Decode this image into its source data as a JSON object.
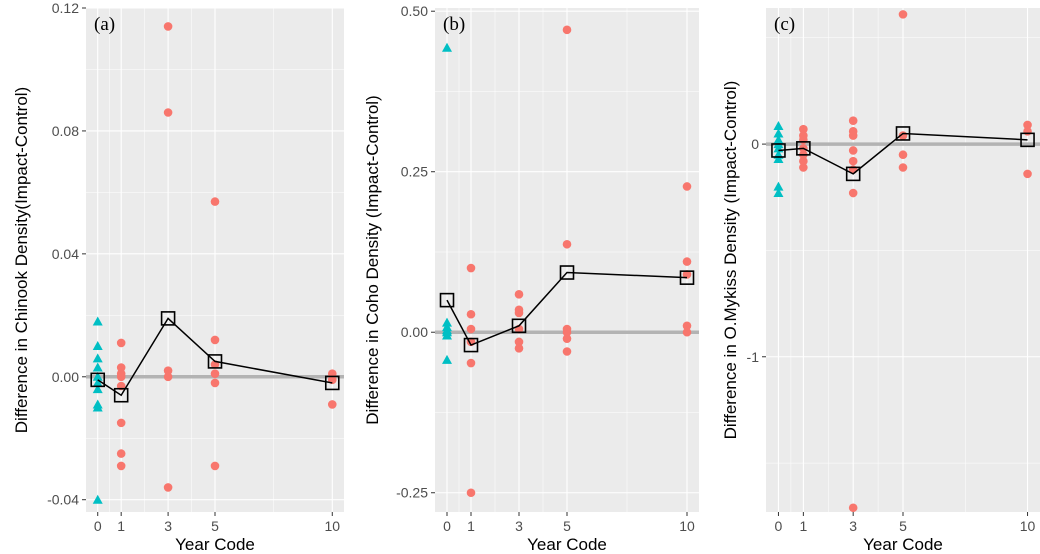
{
  "colors": {
    "treatment": "#f8766d",
    "baseline": "#00bfc4",
    "mean": "#000000",
    "zero_line": "#b3b3b3"
  },
  "chart_data": [
    {
      "type": "scatter",
      "panel_label": "(a)",
      "xlabel": "Year Code",
      "ylabel": "Difference in Chinook Density(Impact-Control)",
      "xlim": [
        -0.5,
        10.5
      ],
      "ylim": [
        -0.044,
        0.12
      ],
      "x_ticks": [
        0,
        1,
        3,
        5,
        10
      ],
      "y_ticks": [
        -0.04,
        0,
        0.04,
        0.08,
        0.12
      ],
      "y_tick_labels": [
        "-0.04",
        "0.00",
        "0.04",
        "0.08",
        "0.12"
      ],
      "grid": true,
      "baseline_points": {
        "x": [
          0,
          0,
          0,
          0,
          0,
          0,
          0,
          0,
          0,
          0
        ],
        "y": [
          0.018,
          0.01,
          0.006,
          0.003,
          0.0,
          -0.002,
          -0.004,
          -0.009,
          -0.01,
          -0.04
        ]
      },
      "treatment_points": {
        "x": [
          1,
          1,
          1,
          1,
          1,
          1,
          1,
          1,
          3,
          3,
          3,
          3,
          3,
          5,
          5,
          5,
          5,
          5,
          5,
          10,
          10,
          10
        ],
        "y": [
          0.011,
          0.003,
          0.001,
          0.0,
          -0.003,
          -0.015,
          -0.025,
          -0.029,
          0.114,
          0.086,
          0.002,
          0.0,
          -0.036,
          0.057,
          0.012,
          0.004,
          0.001,
          -0.002,
          -0.029,
          0.001,
          -0.001,
          -0.009
        ]
      },
      "mean_series": {
        "x": [
          0,
          1,
          3,
          5,
          10
        ],
        "y": [
          -0.001,
          -0.006,
          0.019,
          0.005,
          -0.002
        ]
      }
    },
    {
      "type": "scatter",
      "panel_label": "(b)",
      "xlabel": "Year Code",
      "ylabel": "Difference in Coho Density (Impact-Control)",
      "xlim": [
        -0.5,
        10.5
      ],
      "ylim": [
        -0.28,
        0.505
      ],
      "x_ticks": [
        0,
        1,
        3,
        5,
        10
      ],
      "y_ticks": [
        -0.25,
        0,
        0.25,
        0.5
      ],
      "y_tick_labels": [
        "-0.25",
        "0.00",
        "0.25",
        "0.50"
      ],
      "grid": true,
      "baseline_points": {
        "x": [
          0,
          0,
          0,
          0,
          0,
          0,
          0
        ],
        "y": [
          0.443,
          0.015,
          0.008,
          0.003,
          0.0,
          -0.005,
          -0.043
        ]
      },
      "treatment_points": {
        "x": [
          1,
          1,
          1,
          1,
          1,
          1,
          3,
          3,
          3,
          3,
          3,
          3,
          5,
          5,
          5,
          5,
          5,
          5,
          10,
          10,
          10,
          10,
          10
        ],
        "y": [
          0.1,
          0.028,
          0.005,
          -0.015,
          -0.048,
          -0.25,
          0.059,
          0.035,
          0.03,
          0.005,
          -0.015,
          -0.025,
          0.471,
          0.137,
          0.005,
          0.0,
          -0.01,
          -0.03,
          0.227,
          0.11,
          0.09,
          0.01,
          0.0
        ]
      },
      "mean_series": {
        "x": [
          0,
          1,
          3,
          5,
          10
        ],
        "y": [
          0.05,
          -0.02,
          0.01,
          0.093,
          0.085
        ]
      }
    },
    {
      "type": "scatter",
      "panel_label": "(c)",
      "xlabel": "Year Code",
      "ylabel": "Difference in O.Mykiss Density (Impact-Control)",
      "xlim": [
        -0.5,
        10.5
      ],
      "ylim": [
        -1.73,
        0.64
      ],
      "x_ticks": [
        0,
        1,
        3,
        5,
        10
      ],
      "x_tick_labels": [
        "0",
        "1",
        "3",
        "5",
        "10"
      ],
      "y_ticks": [
        -1,
        0
      ],
      "y_tick_labels": [
        "-1",
        "0"
      ],
      "grid": true,
      "baseline_points": {
        "x": [
          0,
          0,
          0,
          0,
          0,
          0,
          0,
          0,
          0
        ],
        "y": [
          0.085,
          0.05,
          0.02,
          0.0,
          -0.02,
          -0.05,
          -0.07,
          -0.2,
          -0.23
        ]
      },
      "treatment_points": {
        "x": [
          1,
          1,
          1,
          1,
          1,
          1,
          1,
          3,
          3,
          3,
          3,
          3,
          3,
          3,
          3,
          5,
          5,
          5,
          5,
          10,
          10,
          10
        ],
        "y": [
          0.07,
          0.04,
          0.02,
          -0.02,
          -0.05,
          -0.08,
          -0.11,
          0.11,
          0.06,
          0.04,
          -0.03,
          -0.08,
          -0.12,
          -0.23,
          -1.71,
          0.61,
          0.04,
          -0.05,
          -0.11,
          0.09,
          0.06,
          -0.14
        ]
      },
      "mean_series": {
        "x": [
          0,
          1,
          3,
          5,
          10
        ],
        "y": [
          -0.03,
          -0.02,
          -0.14,
          0.05,
          0.02
        ]
      }
    }
  ]
}
